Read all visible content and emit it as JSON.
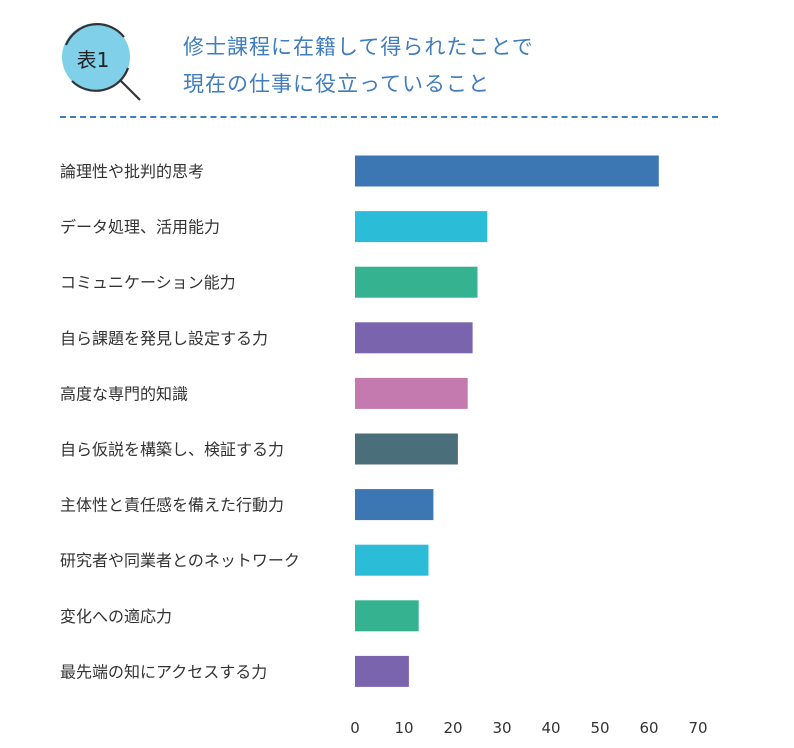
{
  "header": {
    "badge_label": "表1",
    "title_line1": "修士課程に在籍して得られたことで",
    "title_line2": "現在の仕事に役立っていること"
  },
  "colors": {
    "title": "#3f7dbd",
    "badge_fill": "#7fd0e8"
  },
  "chart_data": {
    "type": "bar",
    "orientation": "horizontal",
    "categories": [
      "論理性や批判的思考",
      "データ処理、活用能力",
      "コミュニケーション能力",
      "自ら課題を発見し設定する力",
      "高度な専門的知識",
      "自ら仮説を構築し、検証する力",
      "主体性と責任感を備えた行動力",
      "研究者や同業者とのネットワーク",
      "変化への適応力",
      "最先端の知にアクセスする力"
    ],
    "values": [
      62,
      27,
      25,
      24,
      23,
      21,
      16,
      15,
      13,
      11
    ],
    "bar_colors": [
      "#3d77b3",
      "#2bbcd8",
      "#35b391",
      "#7a64ad",
      "#c47aaf",
      "#4b6e7b",
      "#3d77b3",
      "#2bbcd8",
      "#35b391",
      "#7a64ad"
    ],
    "xticks": [
      0,
      10,
      20,
      30,
      40,
      50,
      60,
      70
    ],
    "xlim": [
      0,
      70
    ],
    "grid": false,
    "legend": false
  }
}
